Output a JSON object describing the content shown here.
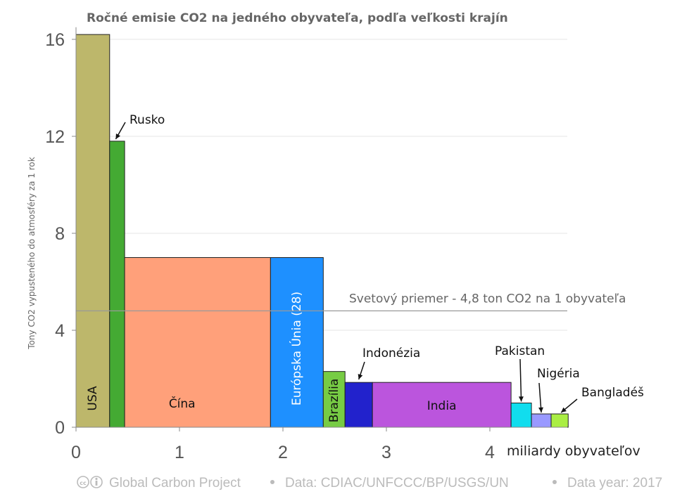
{
  "chart_data": {
    "type": "variable-width bar",
    "title": "Ročné emisie CO2 na jedného obyvateľa, podľa veľkosti krajín",
    "ylabel": "Tony CO2 vypusteného do atmosféry za 1 rok",
    "xlabel": "miliardy obyvateľov",
    "xlim": [
      0,
      4.75
    ],
    "ylim": [
      0,
      16.5
    ],
    "x_ticks": [
      "0",
      "1",
      "2",
      "3",
      "4"
    ],
    "y_ticks": [
      "0",
      "4",
      "8",
      "12",
      "16"
    ],
    "bars": [
      {
        "name": "USA",
        "population": 0.325,
        "value": 16.2,
        "color": "#bdb76b"
      },
      {
        "name": "Rusko",
        "population": 0.145,
        "value": 11.8,
        "color": "#44aa33"
      },
      {
        "name": "Čína",
        "population": 1.41,
        "value": 7.0,
        "color": "#ffa07a"
      },
      {
        "name": "Európska Únia (28)",
        "population": 0.51,
        "value": 7.0,
        "color": "#1e90ff"
      },
      {
        "name": "Brazília",
        "population": 0.21,
        "value": 2.3,
        "color": "#77cc44"
      },
      {
        "name": "Indonézia",
        "population": 0.265,
        "value": 1.85,
        "color": "#2222cc"
      },
      {
        "name": "India",
        "population": 1.34,
        "value": 1.85,
        "color": "#bb55dd"
      },
      {
        "name": "Pakistan",
        "population": 0.197,
        "value": 1.0,
        "color": "#11ddee"
      },
      {
        "name": "Nigéria",
        "population": 0.19,
        "value": 0.55,
        "color": "#9999ff"
      },
      {
        "name": "Bangladéš",
        "population": 0.165,
        "value": 0.55,
        "color": "#aaee44"
      }
    ],
    "reference_line": {
      "value": 4.8,
      "label": "Svetový priemer - 4,8 ton CO2 na 1 obyvateľa"
    }
  },
  "footer": {
    "project": "Global Carbon Project",
    "source": "Data: CDIAC/UNFCCC/BP/USGS/UN",
    "year": "Data year: 2017"
  }
}
